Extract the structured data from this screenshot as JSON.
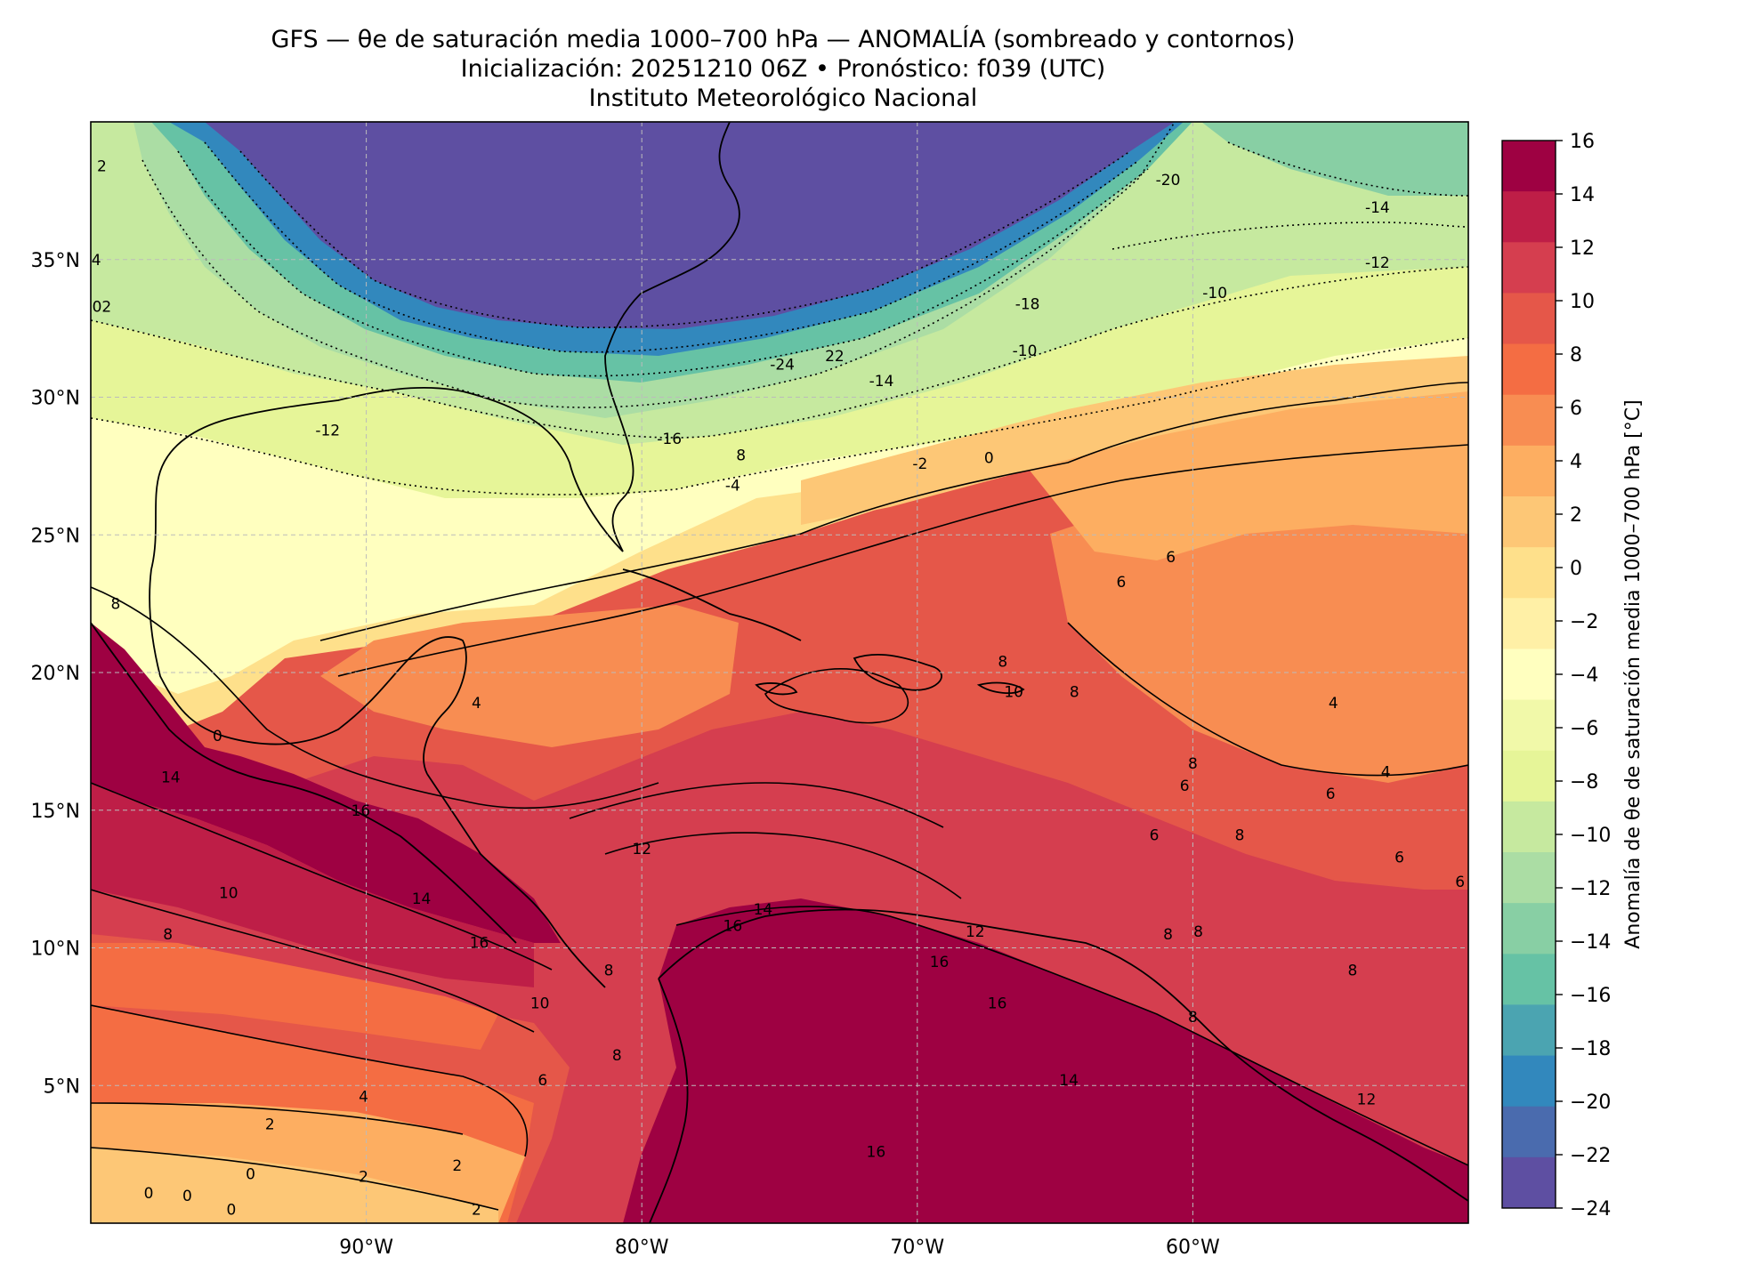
{
  "header": {
    "title_line1": "GFS — θe de saturación media 1000–700 hPa — ANOMALÍA (sombreado y contornos)",
    "title_line2": "Inicialización: 20251210 06Z   •   Pronóstico: f039 (UTC)",
    "title_line3": "Instituto Meteorológico Nacional"
  },
  "map": {
    "lon_range": [
      -100,
      -50
    ],
    "lat_range": [
      0,
      40
    ],
    "lon_ticks": [
      {
        "value": -90,
        "label": "90°W"
      },
      {
        "value": -80,
        "label": "80°W"
      },
      {
        "value": -70,
        "label": "70°W"
      },
      {
        "value": -60,
        "label": "60°W"
      }
    ],
    "lat_ticks": [
      {
        "value": 35,
        "label": "35°N"
      },
      {
        "value": 30,
        "label": "30°N"
      },
      {
        "value": 25,
        "label": "25°N"
      },
      {
        "value": 20,
        "label": "20°N"
      },
      {
        "value": 15,
        "label": "15°N"
      },
      {
        "value": 10,
        "label": "10°N"
      },
      {
        "value": 5,
        "label": "5°N"
      }
    ],
    "gridlines": true,
    "contour_labels": [
      {
        "text": "-20",
        "lon": -60.9,
        "lat": 37.9
      },
      {
        "text": "-14",
        "lon": -53.3,
        "lat": 36.9
      },
      {
        "text": "-12",
        "lon": -53.3,
        "lat": 34.9
      },
      {
        "text": "-10",
        "lon": -59.2,
        "lat": 33.8
      },
      {
        "text": "-18",
        "lon": -66.0,
        "lat": 33.4
      },
      {
        "text": "-10",
        "lon": -66.1,
        "lat": 31.7
      },
      {
        "text": "-24",
        "lon": -74.9,
        "lat": 31.2
      },
      {
        "text": "22",
        "lon": -73.0,
        "lat": 31.5
      },
      {
        "text": "-14",
        "lon": -71.3,
        "lat": 30.6
      },
      {
        "text": "-12",
        "lon": -91.4,
        "lat": 28.8
      },
      {
        "text": "-16",
        "lon": -79.0,
        "lat": 28.5
      },
      {
        "text": "8",
        "lon": -76.4,
        "lat": 27.9
      },
      {
        "text": "-4",
        "lon": -76.7,
        "lat": 26.8
      },
      {
        "text": "-2",
        "lon": -69.9,
        "lat": 27.6
      },
      {
        "text": "0",
        "lon": -67.4,
        "lat": 27.8
      },
      {
        "text": "6",
        "lon": -60.8,
        "lat": 24.2
      },
      {
        "text": "6",
        "lon": -62.6,
        "lat": 23.3
      },
      {
        "text": "8",
        "lon": -66.9,
        "lat": 20.4
      },
      {
        "text": "10",
        "lon": -66.5,
        "lat": 19.3
      },
      {
        "text": "8",
        "lon": -64.3,
        "lat": 19.3
      },
      {
        "text": "4",
        "lon": -54.9,
        "lat": 18.9
      },
      {
        "text": "4",
        "lon": -86.0,
        "lat": 18.9
      },
      {
        "text": "0",
        "lon": -95.4,
        "lat": 17.7
      },
      {
        "text": "14",
        "lon": -97.1,
        "lat": 16.2
      },
      {
        "text": "16",
        "lon": -90.2,
        "lat": 15.0
      },
      {
        "text": "8",
        "lon": -60.0,
        "lat": 16.7
      },
      {
        "text": "6",
        "lon": -60.3,
        "lat": 15.9
      },
      {
        "text": "4",
        "lon": -53.0,
        "lat": 16.4
      },
      {
        "text": "6",
        "lon": -55.0,
        "lat": 15.6
      },
      {
        "text": "6",
        "lon": -61.4,
        "lat": 14.1
      },
      {
        "text": "8",
        "lon": -58.3,
        "lat": 14.1
      },
      {
        "text": "12",
        "lon": -80.0,
        "lat": 13.6
      },
      {
        "text": "6",
        "lon": -52.5,
        "lat": 13.3
      },
      {
        "text": "10",
        "lon": -95.0,
        "lat": 12.0
      },
      {
        "text": "14",
        "lon": -88.0,
        "lat": 11.8
      },
      {
        "text": "6",
        "lon": -50.3,
        "lat": 12.4
      },
      {
        "text": "8",
        "lon": -97.2,
        "lat": 10.5
      },
      {
        "text": "14",
        "lon": -75.6,
        "lat": 11.4
      },
      {
        "text": "16",
        "lon": -76.7,
        "lat": 10.8
      },
      {
        "text": "12",
        "lon": -67.9,
        "lat": 10.6
      },
      {
        "text": "8",
        "lon": -60.9,
        "lat": 10.5
      },
      {
        "text": "8",
        "lon": -59.8,
        "lat": 10.6
      },
      {
        "text": "16",
        "lon": -85.9,
        "lat": 10.2
      },
      {
        "text": "16",
        "lon": -69.2,
        "lat": 9.5
      },
      {
        "text": "8",
        "lon": -81.2,
        "lat": 9.2
      },
      {
        "text": "8",
        "lon": -54.2,
        "lat": 9.2
      },
      {
        "text": "10",
        "lon": -83.7,
        "lat": 8.0
      },
      {
        "text": "16",
        "lon": -67.1,
        "lat": 8.0
      },
      {
        "text": "8",
        "lon": -60.0,
        "lat": 7.5
      },
      {
        "text": "14",
        "lon": -64.5,
        "lat": 5.2
      },
      {
        "text": "8",
        "lon": -80.9,
        "lat": 6.1
      },
      {
        "text": "6",
        "lon": -83.6,
        "lat": 5.2
      },
      {
        "text": "4",
        "lon": -90.1,
        "lat": 4.6
      },
      {
        "text": "12",
        "lon": -53.7,
        "lat": 4.5
      },
      {
        "text": "2",
        "lon": -93.5,
        "lat": 3.6
      },
      {
        "text": "16",
        "lon": -71.5,
        "lat": 2.6
      },
      {
        "text": "2",
        "lon": -86.7,
        "lat": 2.1
      },
      {
        "text": "2",
        "lon": -90.1,
        "lat": 1.7
      },
      {
        "text": "0",
        "lon": -94.2,
        "lat": 1.8
      },
      {
        "text": "0",
        "lon": -97.9,
        "lat": 1.1
      },
      {
        "text": "0",
        "lon": -96.5,
        "lat": 1.0
      },
      {
        "text": "0",
        "lon": -94.9,
        "lat": 0.5
      },
      {
        "text": "2",
        "lon": -86.0,
        "lat": 0.5
      },
      {
        "text": "2",
        "lon": -99.6,
        "lat": 38.4
      },
      {
        "text": "4",
        "lon": -99.8,
        "lat": 35.0
      },
      {
        "text": "02",
        "lon": -99.6,
        "lat": 33.3
      },
      {
        "text": "8",
        "lon": -99.1,
        "lat": 22.5
      }
    ]
  },
  "colorbar": {
    "label": "Anomalía de θe de saturación media 1000–700 hPa [°C]",
    "ticks": [
      "16",
      "14",
      "12",
      "10",
      "8",
      "6",
      "4",
      "2",
      "0",
      "−2",
      "−4",
      "−6",
      "−8",
      "−10",
      "−12",
      "−14",
      "−16",
      "−18",
      "−20",
      "−22",
      "−24"
    ],
    "colors": [
      "#9e0142",
      "#be1e47",
      "#d53e4f",
      "#e55749",
      "#f46d43",
      "#f88d52",
      "#fdae61",
      "#fdc776",
      "#fee08b",
      "#fff0a6",
      "#ffffbf",
      "#f1f9a9",
      "#e6f598",
      "#c6e99f",
      "#abdda4",
      "#88cfa4",
      "#66c2a5",
      "#4ba4b1",
      "#3288bd",
      "#4a6bae",
      "#5e4fa2"
    ]
  }
}
